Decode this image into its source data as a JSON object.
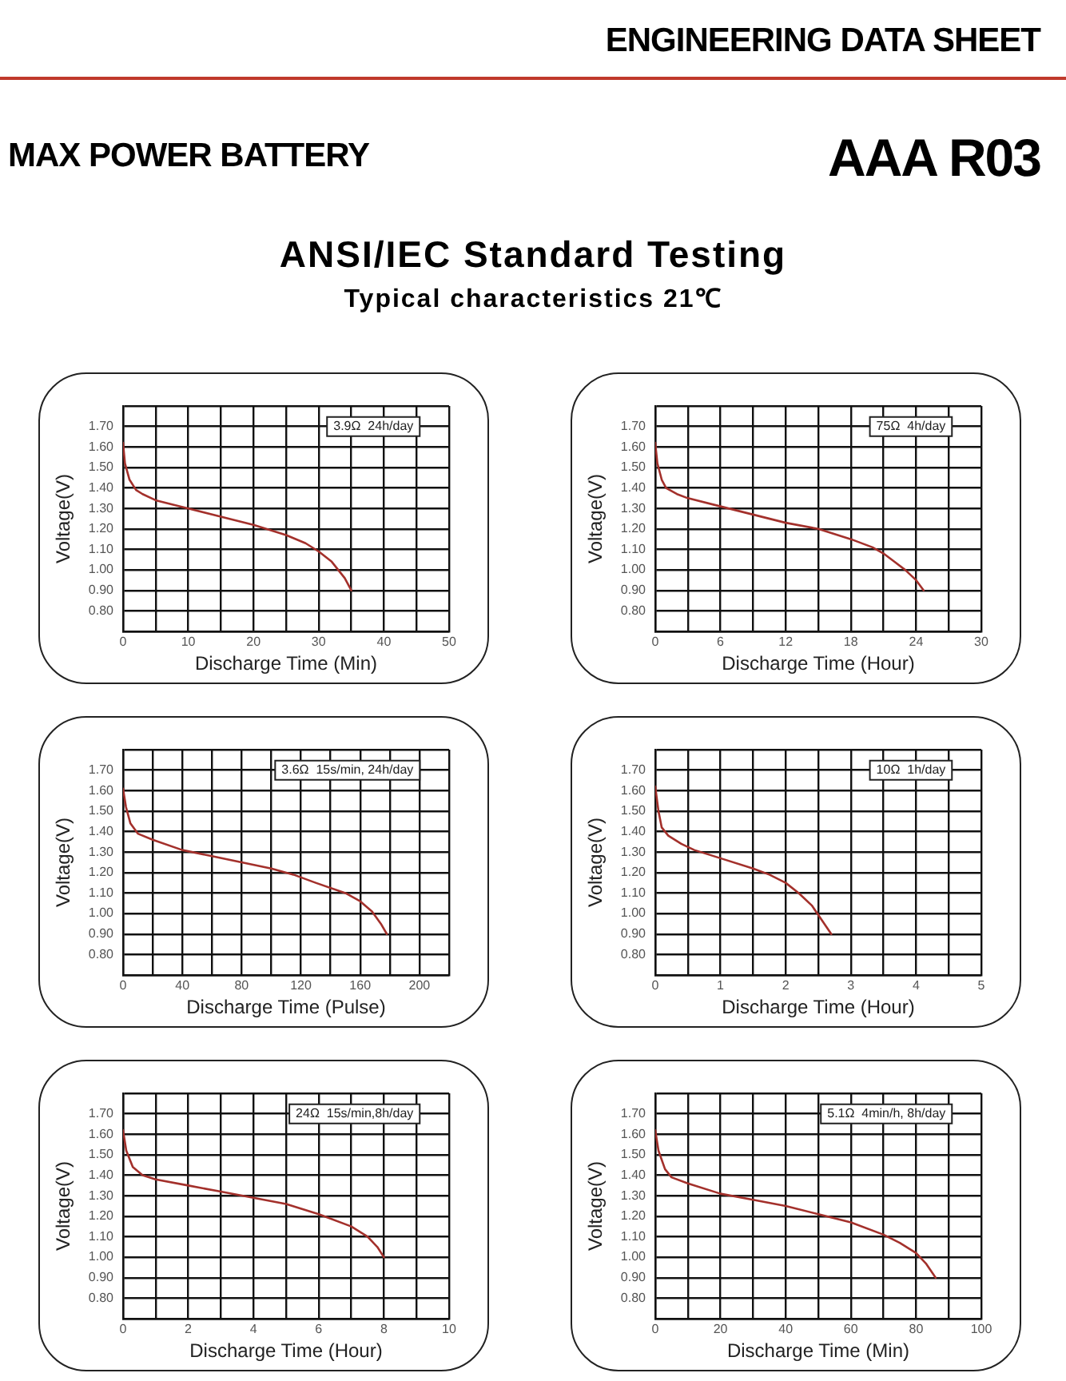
{
  "chart_data": [
    {
      "type": "line",
      "title": "ANSI/IEC Standard Testing",
      "subtitle": "Typical characteristics 21℃",
      "xlabel": "Discharge Time (Min)",
      "ylabel": "Voltage(V)",
      "annotations": [
        "ENGINEERING DATA SHEET",
        "MAX POWER BATTERY",
        "AAA R03",
        "3.9Ω  24h/day"
      ],
      "xlim": [
        0,
        50
      ],
      "xticks": [
        0,
        {
          "value": 5,
          "label": null
        },
        10,
        {
          "value": 15,
          "label": null
        },
        20,
        {
          "value": 25,
          "label": null
        },
        30,
        {
          "value": 35,
          "label": null
        },
        40,
        {
          "value": 45,
          "label": null
        },
        50
      ],
      "ylim": [
        0.7,
        1.8
      ],
      "yticks": [
        {
          "value": 0.7,
          "label": null
        },
        {
          "value": 0.8,
          "label": "0.80"
        },
        {
          "value": 0.9,
          "label": "0.90"
        },
        {
          "value": 1.0,
          "label": "1.00"
        },
        {
          "value": 1.1,
          "label": "1.10"
        },
        {
          "value": 1.2,
          "label": "1.20"
        },
        {
          "value": 1.3,
          "label": "1.30"
        },
        {
          "value": 1.4,
          "label": "1.40"
        },
        {
          "value": 1.5,
          "label": "1.50"
        },
        {
          "value": 1.6,
          "label": "1.60"
        },
        {
          "value": 1.7,
          "label": "1.70"
        },
        {
          "value": 1.8,
          "label": null
        }
      ],
      "grid": true,
      "legend": false,
      "marker": "none",
      "line_style": "solid",
      "series": [
        {
          "color": "#a3302b",
          "x": [
            0,
            0.3,
            1,
            2,
            3,
            5,
            10,
            15,
            20,
            25,
            28,
            30,
            32,
            34,
            35
          ],
          "values": [
            1.62,
            1.52,
            1.44,
            1.39,
            1.37,
            1.34,
            1.3,
            1.26,
            1.22,
            1.17,
            1.13,
            1.09,
            1.04,
            0.96,
            0.9
          ]
        }
      ]
    },
    {
      "type": "line",
      "xlabel": "Discharge Time (Hour)",
      "ylabel": "Voltage(V)",
      "annotations": [
        "75Ω  4h/day"
      ],
      "xlim": [
        0,
        30
      ],
      "xticks": [
        0,
        {
          "value": 3,
          "label": null
        },
        6,
        {
          "value": 9,
          "label": null
        },
        12,
        {
          "value": 15,
          "label": null
        },
        18,
        {
          "value": 21,
          "label": null
        },
        24,
        {
          "value": 27,
          "label": null
        },
        30
      ],
      "ylim": [
        0.7,
        1.8
      ],
      "yticks": [
        {
          "value": 0.7,
          "label": null
        },
        {
          "value": 0.8,
          "label": "0.80"
        },
        {
          "value": 0.9,
          "label": "0.90"
        },
        {
          "value": 1.0,
          "label": "1.00"
        },
        {
          "value": 1.1,
          "label": "1.10"
        },
        {
          "value": 1.2,
          "label": "1.20"
        },
        {
          "value": 1.3,
          "label": "1.30"
        },
        {
          "value": 1.4,
          "label": "1.40"
        },
        {
          "value": 1.5,
          "label": "1.50"
        },
        {
          "value": 1.6,
          "label": "1.60"
        },
        {
          "value": 1.7,
          "label": "1.70"
        },
        {
          "value": 1.8,
          "label": null
        }
      ],
      "grid": true,
      "legend": false,
      "marker": "none",
      "line_style": "solid",
      "series": [
        {
          "color": "#a3302b",
          "x": [
            0,
            0.2,
            0.6,
            1,
            2,
            3,
            6,
            9,
            12,
            15,
            18,
            20,
            21,
            22,
            23,
            24,
            24.7
          ],
          "values": [
            1.62,
            1.52,
            1.44,
            1.4,
            1.37,
            1.35,
            1.31,
            1.27,
            1.23,
            1.2,
            1.15,
            1.11,
            1.08,
            1.04,
            1.0,
            0.95,
            0.9
          ]
        }
      ]
    },
    {
      "type": "line",
      "xlabel": "Discharge Time (Pulse)",
      "ylabel": "Voltage(V)",
      "annotations": [
        "3.6Ω  15s/min, 24h/day"
      ],
      "xlim": [
        0,
        220
      ],
      "xticks": [
        0,
        {
          "value": 20,
          "label": null
        },
        40,
        {
          "value": 60,
          "label": null
        },
        80,
        {
          "value": 100,
          "label": null
        },
        120,
        {
          "value": 140,
          "label": null
        },
        160,
        {
          "value": 180,
          "label": null
        },
        200,
        {
          "value": 220,
          "label": null
        }
      ],
      "ylim": [
        0.7,
        1.8
      ],
      "yticks": [
        {
          "value": 0.7,
          "label": null
        },
        {
          "value": 0.8,
          "label": "0.80"
        },
        {
          "value": 0.9,
          "label": "0.90"
        },
        {
          "value": 1.0,
          "label": "1.00"
        },
        {
          "value": 1.1,
          "label": "1.10"
        },
        {
          "value": 1.2,
          "label": "1.20"
        },
        {
          "value": 1.3,
          "label": "1.30"
        },
        {
          "value": 1.4,
          "label": "1.40"
        },
        {
          "value": 1.5,
          "label": "1.50"
        },
        {
          "value": 1.6,
          "label": "1.60"
        },
        {
          "value": 1.7,
          "label": "1.70"
        },
        {
          "value": 1.8,
          "label": null
        }
      ],
      "grid": true,
      "legend": false,
      "marker": "none",
      "line_style": "solid",
      "series": [
        {
          "color": "#a3302b",
          "x": [
            0,
            2,
            5,
            10,
            20,
            40,
            60,
            80,
            100,
            115,
            130,
            150,
            160,
            168,
            174,
            178
          ],
          "values": [
            1.61,
            1.52,
            1.44,
            1.39,
            1.36,
            1.31,
            1.28,
            1.25,
            1.22,
            1.19,
            1.15,
            1.1,
            1.06,
            1.01,
            0.95,
            0.9
          ]
        }
      ]
    },
    {
      "type": "line",
      "xlabel": "Discharge Time (Hour)",
      "ylabel": "Voltage(V)",
      "annotations": [
        "10Ω  1h/day"
      ],
      "xlim": [
        0,
        5
      ],
      "xticks": [
        0,
        {
          "value": 0.5,
          "label": null
        },
        1,
        {
          "value": 1.5,
          "label": null
        },
        2,
        {
          "value": 2.5,
          "label": null
        },
        3,
        {
          "value": 3.5,
          "label": null
        },
        4,
        {
          "value": 4.5,
          "label": null
        },
        5
      ],
      "ylim": [
        0.7,
        1.8
      ],
      "yticks": [
        {
          "value": 0.7,
          "label": null
        },
        {
          "value": 0.8,
          "label": "0.80"
        },
        {
          "value": 0.9,
          "label": "0.90"
        },
        {
          "value": 1.0,
          "label": "1.00"
        },
        {
          "value": 1.1,
          "label": "1.10"
        },
        {
          "value": 1.2,
          "label": "1.20"
        },
        {
          "value": 1.3,
          "label": "1.30"
        },
        {
          "value": 1.4,
          "label": "1.40"
        },
        {
          "value": 1.5,
          "label": "1.50"
        },
        {
          "value": 1.6,
          "label": "1.60"
        },
        {
          "value": 1.7,
          "label": "1.70"
        },
        {
          "value": 1.8,
          "label": null
        }
      ],
      "grid": true,
      "legend": false,
      "marker": "none",
      "line_style": "solid",
      "series": [
        {
          "color": "#a3302b",
          "x": [
            0,
            0.05,
            0.1,
            0.2,
            0.4,
            0.6,
            1,
            1.5,
            1.75,
            2,
            2.2,
            2.4,
            2.55,
            2.7
          ],
          "values": [
            1.62,
            1.5,
            1.42,
            1.38,
            1.34,
            1.31,
            1.27,
            1.22,
            1.19,
            1.15,
            1.1,
            1.04,
            0.97,
            0.9
          ]
        }
      ]
    },
    {
      "type": "line",
      "xlabel": "Discharge Time (Hour)",
      "ylabel": "Voltage(V)",
      "annotations": [
        "24Ω  15s/min,8h/day"
      ],
      "xlim": [
        0,
        10
      ],
      "xticks": [
        0,
        {
          "value": 1,
          "label": null
        },
        2,
        {
          "value": 3,
          "label": null
        },
        4,
        {
          "value": 5,
          "label": null
        },
        6,
        {
          "value": 7,
          "label": null
        },
        8,
        {
          "value": 9,
          "label": null
        },
        10
      ],
      "ylim": [
        0.7,
        1.8
      ],
      "yticks": [
        {
          "value": 0.7,
          "label": null
        },
        {
          "value": 0.8,
          "label": "0.80"
        },
        {
          "value": 0.9,
          "label": "0.90"
        },
        {
          "value": 1.0,
          "label": "1.00"
        },
        {
          "value": 1.1,
          "label": "1.10"
        },
        {
          "value": 1.2,
          "label": "1.20"
        },
        {
          "value": 1.3,
          "label": "1.30"
        },
        {
          "value": 1.4,
          "label": "1.40"
        },
        {
          "value": 1.5,
          "label": "1.50"
        },
        {
          "value": 1.6,
          "label": "1.60"
        },
        {
          "value": 1.7,
          "label": "1.70"
        },
        {
          "value": 1.8,
          "label": null
        }
      ],
      "grid": true,
      "legend": false,
      "marker": "none",
      "line_style": "solid",
      "series": [
        {
          "color": "#a3302b",
          "x": [
            0,
            0.1,
            0.3,
            0.6,
            1,
            2,
            3,
            4,
            5,
            6,
            7,
            7.5,
            7.8,
            8
          ],
          "values": [
            1.62,
            1.52,
            1.44,
            1.4,
            1.38,
            1.35,
            1.32,
            1.29,
            1.26,
            1.21,
            1.15,
            1.1,
            1.05,
            1.0
          ]
        }
      ]
    },
    {
      "type": "line",
      "xlabel": "Discharge Time (Min)",
      "ylabel": "Voltage(V)",
      "annotations": [
        "5.1Ω  4min/h, 8h/day"
      ],
      "xlim": [
        0,
        100
      ],
      "xticks": [
        0,
        {
          "value": 10,
          "label": null
        },
        20,
        {
          "value": 30,
          "label": null
        },
        40,
        {
          "value": 50,
          "label": null
        },
        60,
        {
          "value": 70,
          "label": null
        },
        80,
        {
          "value": 90,
          "label": null
        },
        100
      ],
      "ylim": [
        0.7,
        1.8
      ],
      "yticks": [
        {
          "value": 0.7,
          "label": null
        },
        {
          "value": 0.8,
          "label": "0.80"
        },
        {
          "value": 0.9,
          "label": "0.90"
        },
        {
          "value": 1.0,
          "label": "1.00"
        },
        {
          "value": 1.1,
          "label": "1.10"
        },
        {
          "value": 1.2,
          "label": "1.20"
        },
        {
          "value": 1.3,
          "label": "1.30"
        },
        {
          "value": 1.4,
          "label": "1.40"
        },
        {
          "value": 1.5,
          "label": "1.50"
        },
        {
          "value": 1.6,
          "label": "1.60"
        },
        {
          "value": 1.7,
          "label": "1.70"
        },
        {
          "value": 1.8,
          "label": null
        }
      ],
      "grid": true,
      "legend": false,
      "marker": "none",
      "line_style": "solid",
      "series": [
        {
          "color": "#a3302b",
          "x": [
            0,
            1,
            3,
            5,
            10,
            20,
            30,
            40,
            50,
            60,
            70,
            75,
            80,
            83,
            86
          ],
          "values": [
            1.62,
            1.52,
            1.43,
            1.39,
            1.36,
            1.31,
            1.28,
            1.25,
            1.21,
            1.17,
            1.11,
            1.07,
            1.02,
            0.97,
            0.9
          ]
        }
      ]
    }
  ]
}
